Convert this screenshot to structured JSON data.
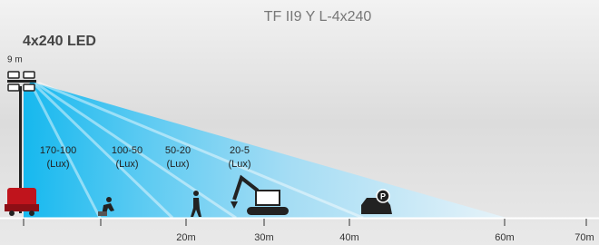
{
  "title": "TF II9 Y L-4x240",
  "model": "4x240 LED",
  "height": "9 m",
  "zones": [
    {
      "range": "170-100",
      "unit": "(Lux)"
    },
    {
      "range": "100-50",
      "unit": "(Lux)"
    },
    {
      "range": "50-20",
      "unit": "(Lux)"
    },
    {
      "range": "20-5",
      "unit": "(Lux)"
    }
  ],
  "distances": [
    "20m",
    "30m",
    "40m",
    "60m",
    "70m"
  ]
}
